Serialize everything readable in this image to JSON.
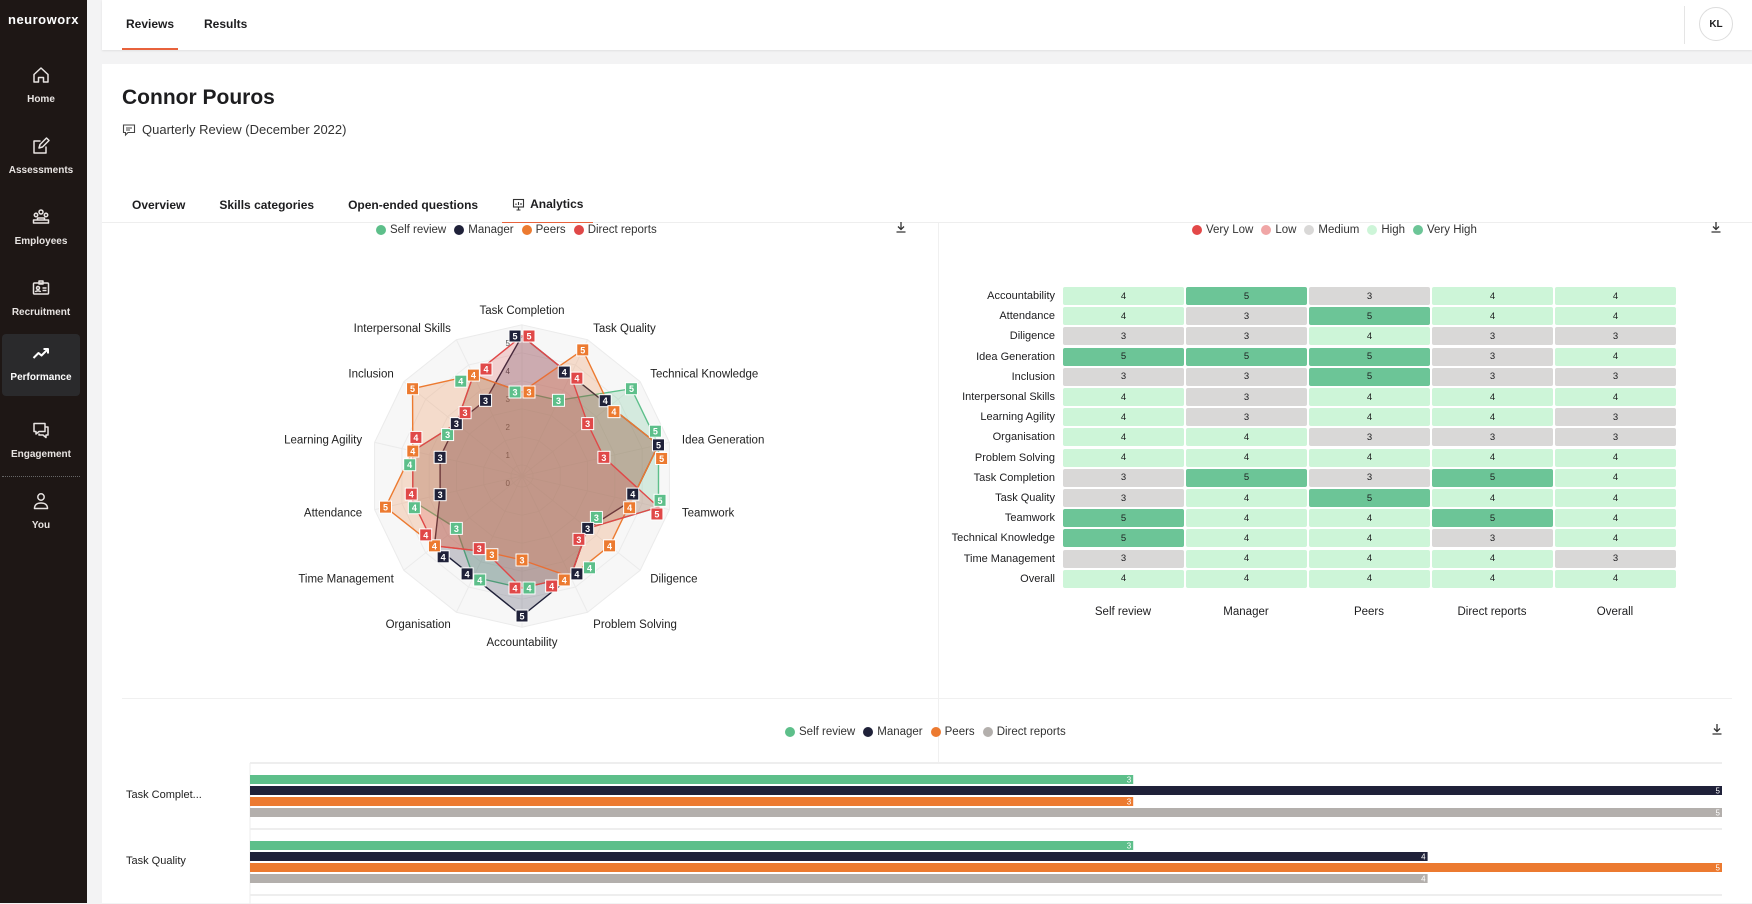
{
  "app": {
    "logo": "neuroworx"
  },
  "sidebar": {
    "items": [
      {
        "label": "Home",
        "icon": "home-icon"
      },
      {
        "label": "Assessments",
        "icon": "edit-icon"
      },
      {
        "label": "Employees",
        "icon": "users-icon"
      },
      {
        "label": "Recruitment",
        "icon": "id-card-icon"
      },
      {
        "label": "Performance",
        "icon": "trending-up-icon",
        "active": true
      },
      {
        "label": "Engagement",
        "icon": "chat-icon"
      },
      {
        "label": "You",
        "icon": "user-icon"
      }
    ]
  },
  "topbar": {
    "tabs": [
      {
        "label": "Reviews",
        "active": true
      },
      {
        "label": "Results"
      }
    ],
    "avatar": "KL"
  },
  "page": {
    "title": "Connor Pouros",
    "subtitle": "Quarterly Review (December 2022)",
    "tabs": [
      {
        "label": "Overview"
      },
      {
        "label": "Skills categories"
      },
      {
        "label": "Open-ended questions"
      },
      {
        "label": "Analytics",
        "active": true
      }
    ]
  },
  "colors": {
    "self": "#5dbf8a",
    "manager": "#1f2139",
    "peers": "#ec7a30",
    "direct": "#e04848",
    "direct_bar": "#b3afac",
    "very_low": "#e34848",
    "low": "#f0a6a6",
    "medium": "#d9d8d7",
    "high": "#cdf5d8",
    "very_high": "#6cc597"
  },
  "chart_data": [
    {
      "type": "radar",
      "legend": [
        "Self review",
        "Manager",
        "Peers",
        "Direct reports"
      ],
      "axes": [
        "Task Completion",
        "Task Quality",
        "Technical Knowledge",
        "Idea Generation",
        "Teamwork",
        "Diligence",
        "Problem Solving",
        "Accountability",
        "Organisation",
        "Time Management",
        "Attendance",
        "Learning Agility",
        "Inclusion",
        "Interpersonal Skills"
      ],
      "rlim": [
        0,
        5
      ],
      "ticks": [
        "0",
        "1",
        "2",
        "3",
        "4",
        "5"
      ],
      "series": [
        {
          "name": "Self review",
          "values": [
            3,
            3,
            5,
            5,
            5,
            3,
            4,
            4,
            4,
            3,
            4,
            4,
            3,
            4
          ]
        },
        {
          "name": "Manager",
          "values": [
            5,
            4,
            4,
            5,
            4,
            3,
            4,
            5,
            4,
            4,
            3,
            3,
            3,
            3
          ]
        },
        {
          "name": "Peers",
          "values": [
            3,
            5,
            4,
            5,
            4,
            4,
            4,
            3,
            3,
            4,
            5,
            4,
            5,
            4
          ]
        },
        {
          "name": "Direct reports",
          "values": [
            5,
            4,
            3,
            3,
            5,
            3,
            4,
            4,
            3,
            4,
            4,
            4,
            3,
            4
          ]
        }
      ]
    },
    {
      "type": "heatmap",
      "legend": [
        "Very Low",
        "Low",
        "Medium",
        "High",
        "Very High"
      ],
      "rows": [
        "Accountability",
        "Attendance",
        "Diligence",
        "Idea Generation",
        "Inclusion",
        "Interpersonal Skills",
        "Learning Agility",
        "Organisation",
        "Problem Solving",
        "Task Completion",
        "Task Quality",
        "Teamwork",
        "Technical Knowledge",
        "Time Management",
        "Overall"
      ],
      "columns": [
        "Self review",
        "Manager",
        "Peers",
        "Direct reports",
        "Overall"
      ],
      "values": [
        [
          4,
          5,
          3,
          4,
          4
        ],
        [
          4,
          3,
          5,
          4,
          4
        ],
        [
          3,
          3,
          4,
          3,
          3
        ],
        [
          5,
          5,
          5,
          3,
          4
        ],
        [
          3,
          3,
          5,
          3,
          3
        ],
        [
          4,
          3,
          4,
          4,
          4
        ],
        [
          4,
          3,
          4,
          4,
          3
        ],
        [
          4,
          4,
          3,
          3,
          3
        ],
        [
          4,
          4,
          4,
          4,
          4
        ],
        [
          3,
          5,
          3,
          5,
          4
        ],
        [
          3,
          4,
          5,
          4,
          4
        ],
        [
          5,
          4,
          4,
          5,
          4
        ],
        [
          5,
          4,
          4,
          3,
          4
        ],
        [
          3,
          4,
          4,
          4,
          3
        ],
        [
          4,
          4,
          4,
          4,
          4
        ]
      ]
    },
    {
      "type": "bar",
      "orientation": "horizontal",
      "legend": [
        "Self review",
        "Manager",
        "Peers",
        "Direct reports"
      ],
      "xlim": [
        0,
        5
      ],
      "categories": [
        "Task Complet...",
        "Task Quality"
      ],
      "series": [
        {
          "name": "Self review",
          "values": [
            3,
            3
          ]
        },
        {
          "name": "Manager",
          "values": [
            5,
            4
          ]
        },
        {
          "name": "Peers",
          "values": [
            3,
            5
          ]
        },
        {
          "name": "Direct reports",
          "values": [
            5,
            4
          ]
        }
      ]
    }
  ]
}
